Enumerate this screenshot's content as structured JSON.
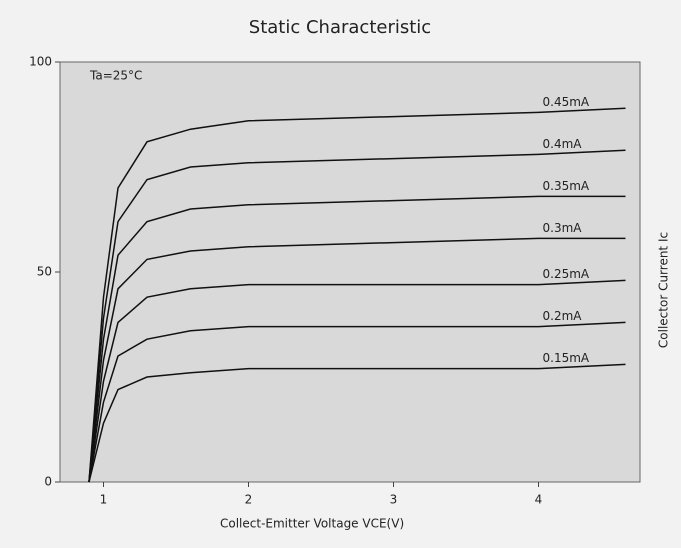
{
  "chart_data": {
    "type": "line",
    "title": "Static Characteristic",
    "annotation": "Ta=25°C",
    "xlabel": "Collect-Emitter Voltage VCE(V)",
    "ylabel": "Collector Current Ic",
    "x": [
      0.9,
      1.0,
      1.1,
      1.3,
      1.6,
      2,
      3,
      4,
      4.6
    ],
    "xlim": [
      0.7,
      4.7
    ],
    "xticks": [
      1,
      2,
      3,
      4
    ],
    "ylim": [
      0,
      100
    ],
    "yticks": [
      0,
      50,
      100
    ],
    "grid": false,
    "series": [
      {
        "name": "0.45mA",
        "color": "#111111",
        "values": [
          0,
          44,
          70,
          81,
          84,
          86,
          87,
          88,
          89
        ]
      },
      {
        "name": "0.4mA",
        "color": "#111111",
        "values": [
          0,
          39,
          62,
          72,
          75,
          76,
          77,
          78,
          79
        ]
      },
      {
        "name": "0.35mA",
        "color": "#111111",
        "values": [
          0,
          34,
          54,
          62,
          65,
          66,
          67,
          68,
          68
        ]
      },
      {
        "name": "0.3mA",
        "color": "#111111",
        "values": [
          0,
          29,
          46,
          53,
          55,
          56,
          57,
          58,
          58
        ]
      },
      {
        "name": "0.25mA",
        "color": "#111111",
        "values": [
          0,
          24,
          38,
          44,
          46,
          47,
          47,
          47,
          48
        ]
      },
      {
        "name": "0.2mA",
        "color": "#111111",
        "values": [
          0,
          19,
          30,
          34,
          36,
          37,
          37,
          37,
          38
        ]
      },
      {
        "name": "0.15mA",
        "color": "#111111",
        "values": [
          0,
          14,
          22,
          25,
          26,
          27,
          27,
          27,
          28
        ]
      }
    ]
  }
}
